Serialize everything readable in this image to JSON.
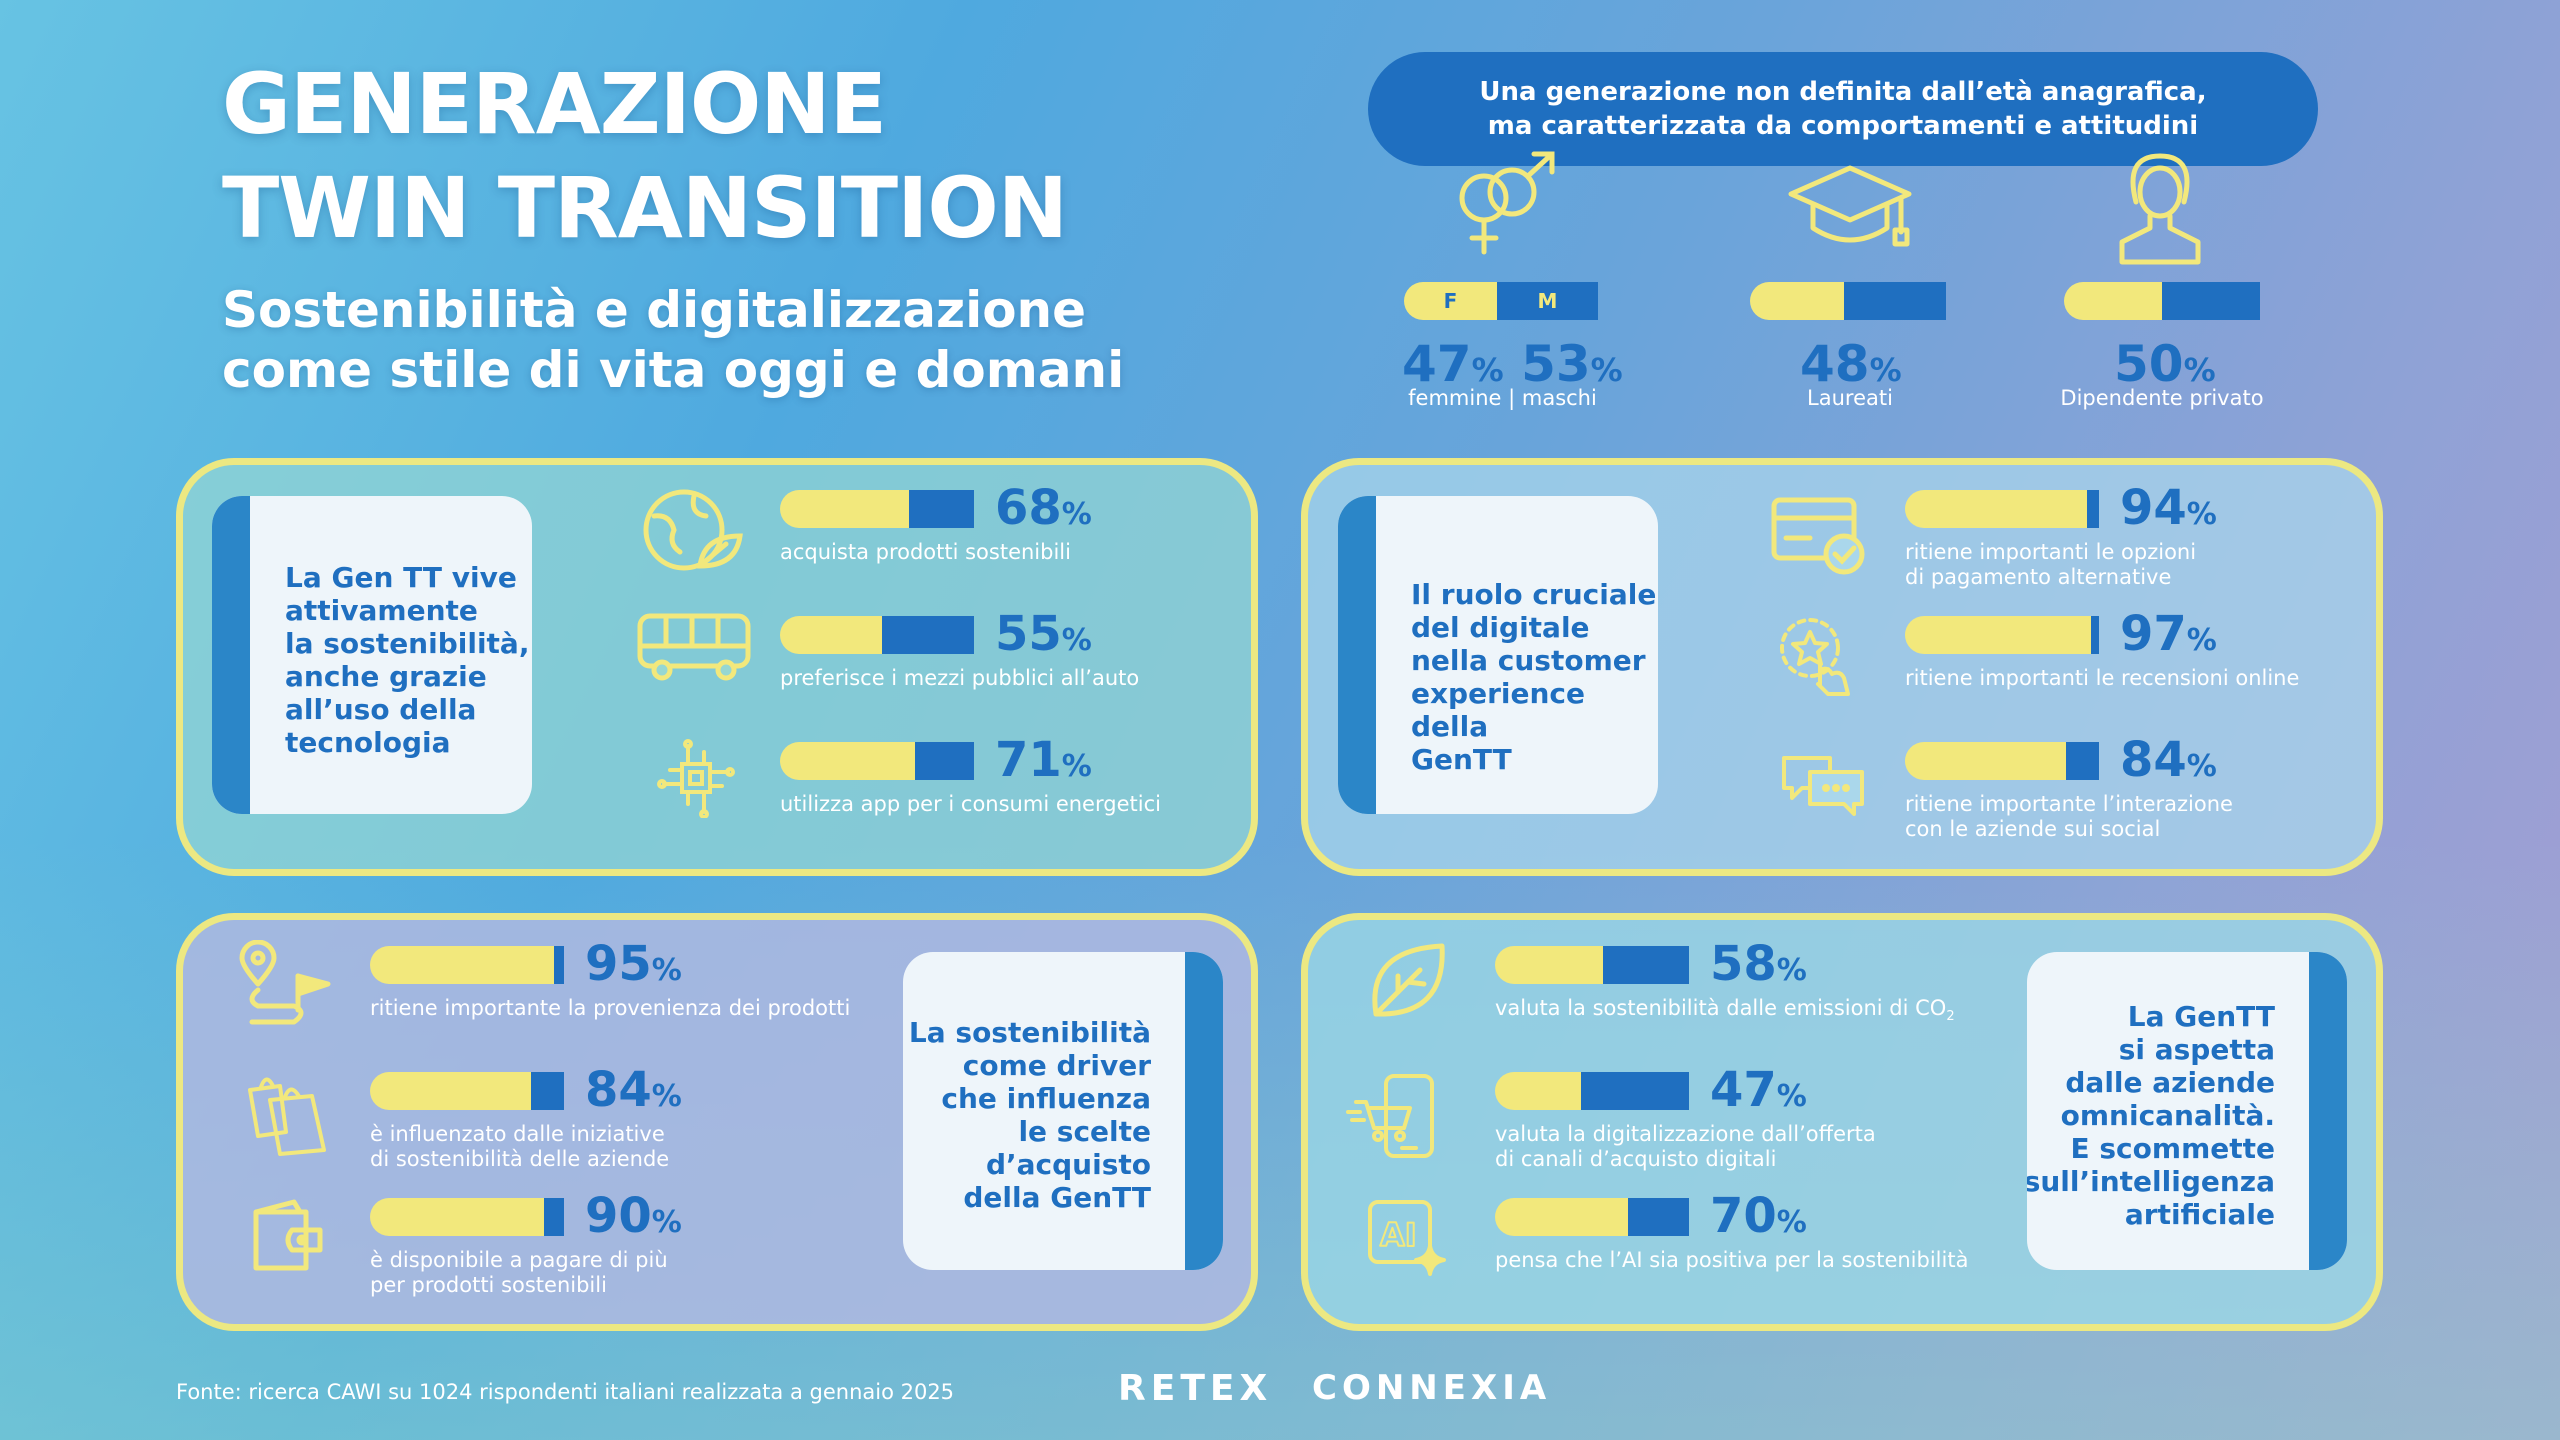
{
  "header": {
    "title_line1": "GENERAZIONE",
    "title_line2": "TWIN TRANSITION",
    "subtitle_line1": "Sostenibilità e digitalizzazione",
    "subtitle_line2": "come stile di vita oggi e domani"
  },
  "callout": {
    "line1": "Una generazione non definita dall’età anagrafica,",
    "line2": "ma caratterizzata da comportamenti e attitudini"
  },
  "demographics": {
    "gender": {
      "icon": "gender-icon",
      "f_label": "F",
      "m_label": "M",
      "f_value": 47,
      "m_value": 53,
      "f_pct": "47",
      "m_pct": "53",
      "unit": "%",
      "label": "femmine | maschi"
    },
    "graduates": {
      "icon": "graduation-cap-icon",
      "value": 48,
      "pct": "48",
      "unit": "%",
      "label": "Laureati"
    },
    "employees": {
      "icon": "person-icon",
      "value": 50,
      "pct": "50",
      "unit": "%",
      "label": "Dipendente privato"
    }
  },
  "panels": {
    "sustainability_tech": {
      "card": [
        "La Gen TT vive",
        "attivamente",
        "la sostenibilità,",
        "anche grazie",
        "all’uso della",
        "tecnologia"
      ],
      "items": [
        {
          "icon": "globe-leaf-icon",
          "value": 68,
          "pct": "68",
          "unit": "%",
          "label": "acquista prodotti sostenibili"
        },
        {
          "icon": "bus-icon",
          "value": 55,
          "pct": "55",
          "unit": "%",
          "label": "preferisce i mezzi pubblici all’auto"
        },
        {
          "icon": "chip-circuit-icon",
          "value": 71,
          "pct": "71",
          "unit": "%",
          "label": "utilizza app per i consumi energetici"
        }
      ]
    },
    "digital_cx": {
      "card": [
        "Il ruolo cruciale",
        "del digitale",
        "nella customer",
        "experience della",
        "GenTT"
      ],
      "items": [
        {
          "icon": "payment-card-icon",
          "value": 94,
          "pct": "94",
          "unit": "%",
          "label_line1": "ritiene importanti le opzioni",
          "label_line2": "di pagamento alternative"
        },
        {
          "icon": "star-review-icon",
          "value": 97,
          "pct": "97",
          "unit": "%",
          "label_line1": "ritiene importanti le recensioni online",
          "label_line2": ""
        },
        {
          "icon": "chat-bubbles-icon",
          "value": 84,
          "pct": "84",
          "unit": "%",
          "label_line1": "ritiene importante l’interazione",
          "label_line2": "con le aziende sui social"
        }
      ]
    },
    "sustainability_driver": {
      "card": [
        "La sostenibilità",
        "come driver",
        "che influenza",
        "le scelte",
        "d’acquisto",
        "della GenTT"
      ],
      "items": [
        {
          "icon": "route-pin-icon",
          "value": 95,
          "pct": "95",
          "unit": "%",
          "label_line1": "ritiene importante la provenienza dei prodotti",
          "label_line2": ""
        },
        {
          "icon": "shopping-bags-icon",
          "value": 84,
          "pct": "84",
          "unit": "%",
          "label_line1": "è influenzato dalle iniziative",
          "label_line2": "di sostenibilità delle aziende"
        },
        {
          "icon": "wallet-icon",
          "value": 90,
          "pct": "90",
          "unit": "%",
          "label_line1": "è disponibile a pagare di più",
          "label_line2": "per prodotti sostenibili"
        }
      ]
    },
    "omnichannel": {
      "card": [
        "La GenTT",
        "si aspetta",
        "dalle aziende",
        "omnicanalità.",
        "E scommette",
        "sull’intelligenza",
        "artificiale"
      ],
      "items": [
        {
          "icon": "leaf-icon",
          "value": 58,
          "pct": "58",
          "unit": "%",
          "label_line1": "valuta la sostenibilità dalle emissioni di CO",
          "label_sub": "2",
          "label_line2": ""
        },
        {
          "icon": "phone-cart-icon",
          "value": 47,
          "pct": "47",
          "unit": "%",
          "label_line1": "valuta la digitalizzazione dall’offerta",
          "label_line2": "di canali d’acquisto digitali"
        },
        {
          "icon": "ai-sparkle-icon",
          "value": 70,
          "pct": "70",
          "unit": "%",
          "label_line1": "pensa che l’AI sia positiva per la sostenibilità",
          "label_line2": ""
        }
      ]
    }
  },
  "footer": {
    "source": "Fonte: ricerca CAWI su 1024 rispondenti italiani realizzata a gennaio 2025",
    "logo1": "RETEX",
    "logo2": "CONNEXIA"
  },
  "colors": {
    "yellow": "#f2e87c",
    "blue": "#1f6fc0",
    "stripe": "#2b86c8"
  }
}
